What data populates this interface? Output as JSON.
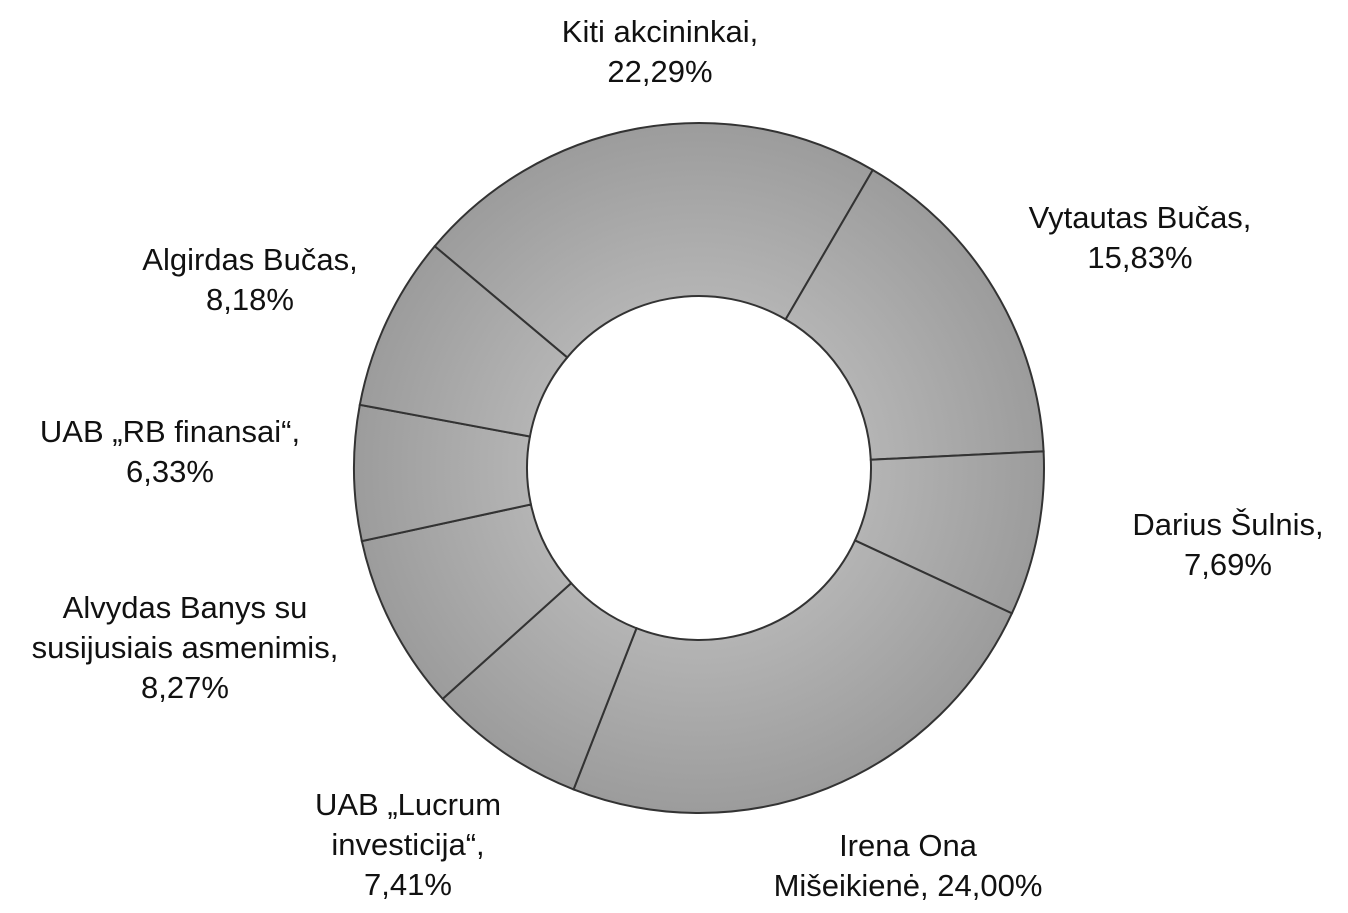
{
  "chart_data": {
    "type": "donut",
    "categories": [
      "Kiti akcininkai,",
      "Vytautas Bučas,",
      "Darius Šulnis,",
      "Irena Ona\nMišeikienė,",
      "UAB „Lucrum\ninvesticija“,",
      "Alvydas Banys su\nsusijusiais asmenimis,",
      "UAB „RB finansai“,",
      "Algirdas Bučas,"
    ],
    "values": [
      22.29,
      15.83,
      7.69,
      24.0,
      7.41,
      8.27,
      6.33,
      8.18
    ],
    "value_labels": [
      "22,29%",
      "15,83%",
      "7,69%",
      "24,00%",
      "7,41%",
      "8,27%",
      "6,33%",
      "8,18%"
    ],
    "color": "#a6a6a6"
  }
}
